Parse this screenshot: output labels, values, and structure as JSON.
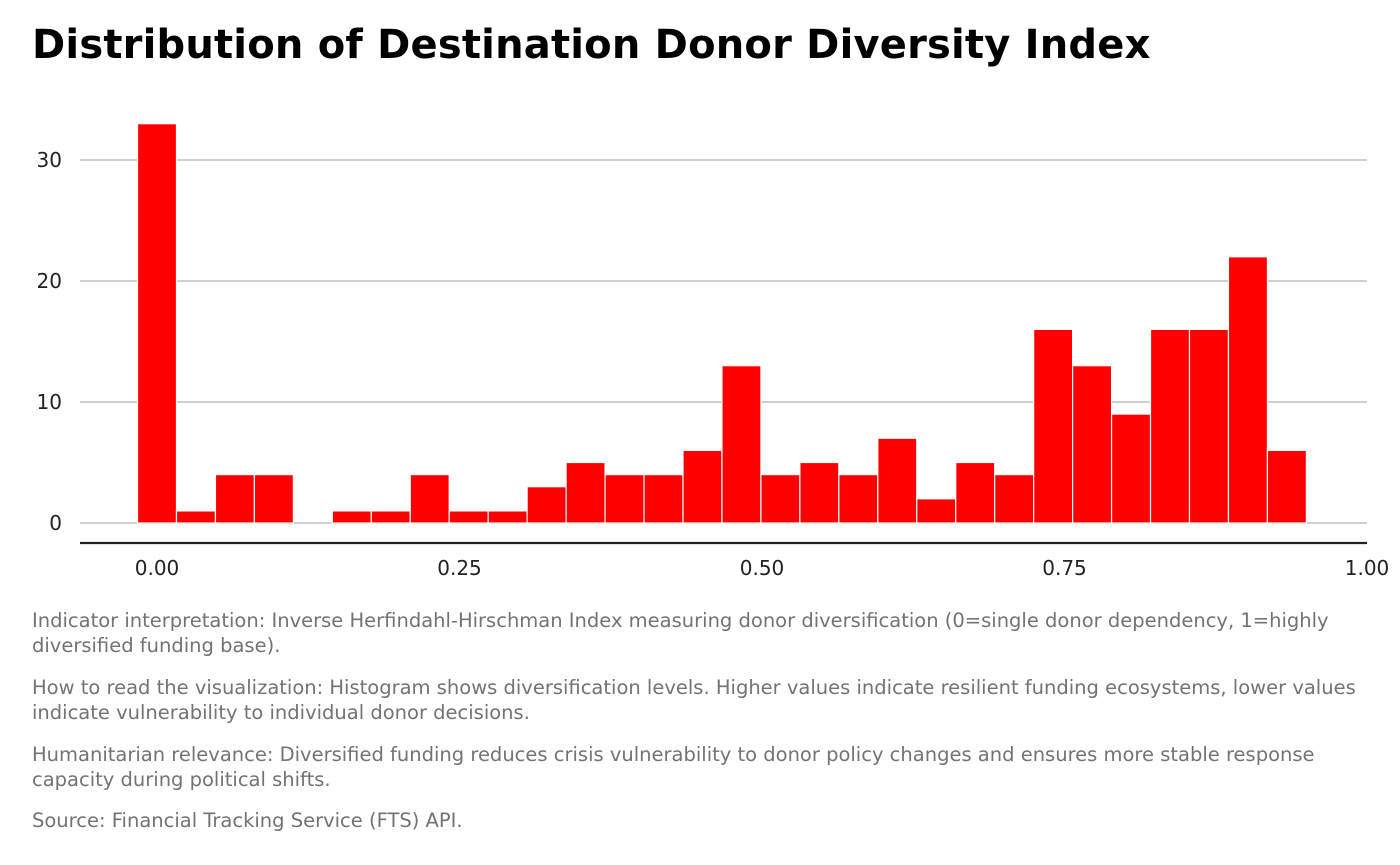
{
  "title": "Distribution of Destination Donor Diversity Index",
  "colors": {
    "bar_fill": "#ff0000",
    "bar_outline": "#ffffff",
    "grid": "#bfbfbf",
    "axis": "#222222",
    "caption": "#737373"
  },
  "chart_data": {
    "type": "bar",
    "subtype": "histogram",
    "title": "Distribution of Destination Donor Diversity Index",
    "xlabel": "",
    "ylabel": "",
    "bins": 30,
    "bin_width": 0.0322,
    "first_bin_center": 0.0,
    "counts": [
      33,
      1,
      4,
      4,
      0,
      1,
      1,
      4,
      1,
      1,
      3,
      5,
      4,
      4,
      6,
      13,
      4,
      5,
      4,
      7,
      2,
      5,
      4,
      16,
      13,
      9,
      16,
      16,
      22,
      6
    ],
    "xlim": [
      -0.0645,
      1.0
    ],
    "ylim": [
      -1.7,
      33
    ],
    "x_ticks": [
      0.0,
      0.25,
      0.5,
      0.75,
      1.0
    ],
    "x_tick_labels": [
      "0.00",
      "0.25",
      "0.50",
      "0.75",
      "1.00"
    ],
    "y_ticks": [
      0,
      10,
      20,
      30
    ],
    "y_tick_labels": [
      "0",
      "10",
      "20",
      "30"
    ],
    "grid": "horizontal-major",
    "legend": "none"
  },
  "captions": [
    "Indicator interpretation: Inverse Herfindahl-Hirschman Index measuring donor diversification (0=single donor dependency, 1=highly diversified funding base).",
    "How to read the visualization: Histogram shows diversification levels. Higher values indicate resilient funding ecosystems, lower values indicate vulnerability to individual donor decisions.",
    "Humanitarian relevance: Diversified funding reduces crisis vulnerability to donor policy changes and ensures more stable response capacity during political shifts.",
    "Source: Financial Tracking Service (FTS) API."
  ]
}
